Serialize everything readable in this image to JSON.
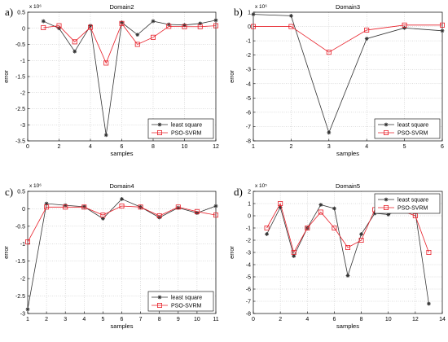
{
  "legend": {
    "series1": "least square",
    "series2": "PSO-SVRM"
  },
  "axis_labels": {
    "x": "samples",
    "y": "error"
  },
  "colors": {
    "least_square": "#333333",
    "pso_svrm": "#e8202a",
    "axes": "#000000",
    "grid": "#bdbdbd"
  },
  "panels": [
    {
      "letter": "a)",
      "title": "Domain2",
      "exponent_text": "x 10⁶"
    },
    {
      "letter": "b)",
      "title": "Domain3",
      "exponent_text": "x 10⁶"
    },
    {
      "letter": "c)",
      "title": "Domain4",
      "exponent_text": "x 10⁶"
    },
    {
      "letter": "d)",
      "title": "Domain5",
      "exponent_text": "x 10⁵"
    }
  ],
  "chart_data": [
    {
      "type": "line",
      "title": "Domain2",
      "xlabel": "samples",
      "ylabel": "error",
      "y_multiplier": "x 10^6",
      "xlim": [
        0,
        12
      ],
      "ylim": [
        -3.5,
        0.5
      ],
      "xticks": [
        0,
        2,
        4,
        6,
        8,
        10,
        12
      ],
      "yticks": [
        -3.5,
        -3,
        -2.5,
        -2,
        -1.5,
        -1,
        -0.5,
        0,
        0.5
      ],
      "grid": true,
      "legend_position": "bottom-right",
      "x": [
        1,
        2,
        3,
        4,
        5,
        6,
        7,
        8,
        9,
        10,
        11,
        12
      ],
      "series": [
        {
          "name": "least square",
          "marker": "star",
          "values": [
            0.22,
            0.0,
            -0.72,
            0.08,
            -3.32,
            0.18,
            -0.2,
            0.22,
            0.12,
            0.1,
            0.15,
            0.25
          ]
        },
        {
          "name": "PSO-SVRM",
          "marker": "square",
          "values": [
            0.02,
            0.08,
            -0.42,
            0.03,
            -1.08,
            0.15,
            -0.5,
            -0.28,
            0.06,
            0.05,
            0.05,
            0.08
          ]
        }
      ]
    },
    {
      "type": "line",
      "title": "Domain3",
      "xlabel": "samples",
      "ylabel": "error",
      "y_multiplier": "x 10^6",
      "xlim": [
        1,
        6
      ],
      "ylim": [
        -8,
        1
      ],
      "xticks": [
        1,
        2,
        3,
        4,
        5,
        6
      ],
      "yticks": [
        -8,
        -7,
        -6,
        -5,
        -4,
        -3,
        -2,
        -1,
        0,
        1
      ],
      "grid": true,
      "legend_position": "bottom-right",
      "x": [
        1,
        2,
        3,
        4,
        5,
        6
      ],
      "series": [
        {
          "name": "least square",
          "marker": "star",
          "values": [
            0.85,
            0.75,
            -7.42,
            -0.85,
            -0.1,
            -0.3
          ]
        },
        {
          "name": "PSO-SVRM",
          "marker": "square",
          "values": [
            0.0,
            0.0,
            -1.8,
            -0.25,
            0.1,
            0.1
          ]
        }
      ]
    },
    {
      "type": "line",
      "title": "Domain4",
      "xlabel": "samples",
      "ylabel": "error",
      "y_multiplier": "x 10^6",
      "xlim": [
        1,
        11
      ],
      "ylim": [
        -3,
        0.5
      ],
      "xticks": [
        1,
        2,
        3,
        4,
        5,
        6,
        7,
        8,
        9,
        10,
        11
      ],
      "yticks": [
        -3,
        -2.5,
        -2,
        -1.5,
        -1,
        -0.5,
        0,
        0.5
      ],
      "grid": true,
      "legend_position": "bottom-right",
      "x": [
        1,
        2,
        3,
        4,
        5,
        6,
        7,
        8,
        9,
        10,
        11
      ],
      "series": [
        {
          "name": "least square",
          "marker": "star",
          "values": [
            -2.88,
            0.15,
            0.1,
            0.06,
            -0.28,
            0.28,
            0.05,
            -0.25,
            0.03,
            -0.12,
            0.08
          ]
        },
        {
          "name": "PSO-SVRM",
          "marker": "square",
          "values": [
            -0.95,
            0.05,
            0.05,
            0.05,
            -0.18,
            0.08,
            0.05,
            -0.2,
            0.05,
            -0.08,
            -0.18
          ]
        }
      ]
    },
    {
      "type": "line",
      "title": "Domain5",
      "xlabel": "samples",
      "ylabel": "error",
      "y_multiplier": "x 10^5",
      "xlim": [
        0,
        14
      ],
      "ylim": [
        -8,
        2
      ],
      "xticks": [
        0,
        2,
        4,
        6,
        8,
        10,
        12,
        14
      ],
      "yticks": [
        -8,
        -7,
        -6,
        -5,
        -4,
        -3,
        -2,
        -1,
        0,
        1,
        2
      ],
      "grid": true,
      "legend_position": "top-right",
      "x": [
        1,
        2,
        3,
        4,
        5,
        6,
        7,
        8,
        9,
        10,
        11,
        12,
        13
      ],
      "series": [
        {
          "name": "least square",
          "marker": "star",
          "values": [
            -1.5,
            0.7,
            -3.3,
            -1.0,
            0.9,
            0.6,
            -4.9,
            -1.5,
            0.2,
            0.1,
            0.6,
            0.3,
            -7.2
          ]
        },
        {
          "name": "PSO-SVRM",
          "marker": "square",
          "values": [
            -1.0,
            1.0,
            -3.0,
            -1.0,
            0.3,
            -1.0,
            -2.6,
            -2.0,
            0.5,
            0.4,
            0.4,
            0.0,
            -3.0
          ]
        }
      ]
    }
  ]
}
